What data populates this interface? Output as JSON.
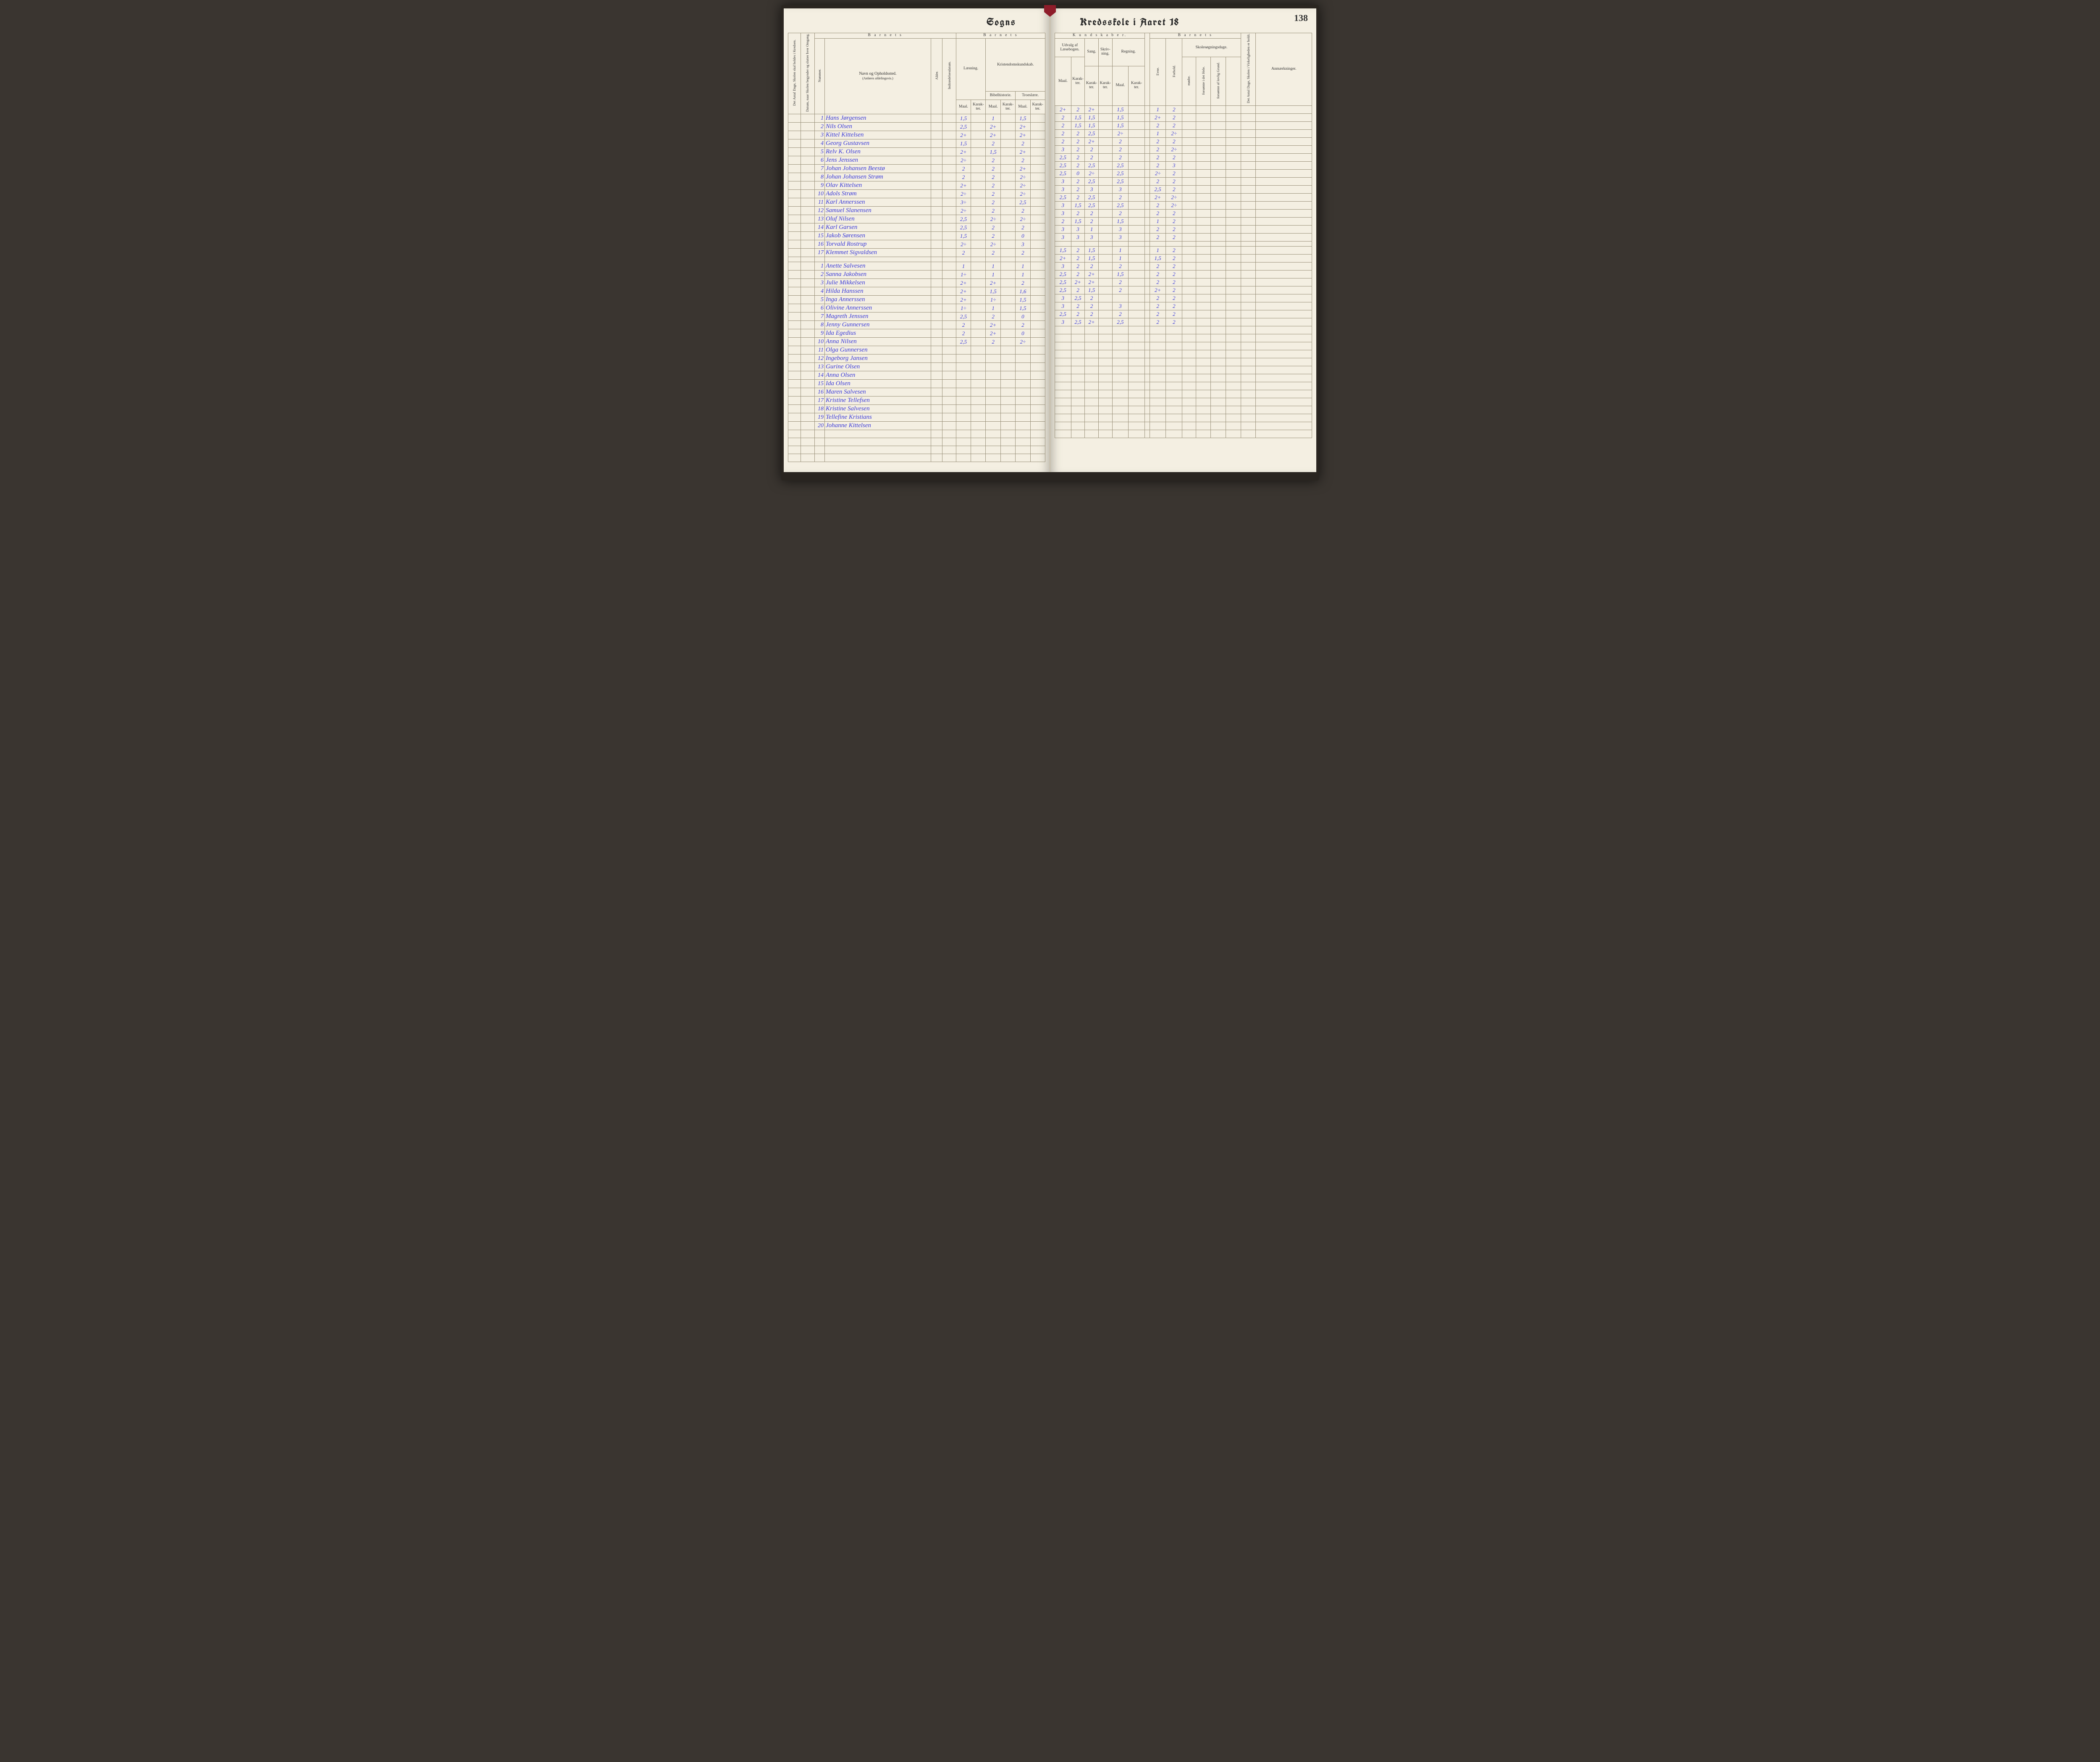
{
  "pageNumber": "138",
  "headings": {
    "left": "Sogns",
    "right": "Kredsskole i Aaret 18"
  },
  "leftHeader": {
    "col1": "Det Antal Dage, Skolen skal holdes i Kredsen.",
    "col2": "Datum, naar Skolen begynder og slutter hver Omgang.",
    "barnetsTop": "B a r n e t s",
    "nummer": "Nummer.",
    "navn": "Navn og Opholdssted.",
    "navnSub": "(Anføres afdelingsvis.)",
    "alder": "Alder.",
    "indtr": "Indtrædelsesdatum.",
    "barnetsRight": "B a r n e t s",
    "laesning": "Læsning.",
    "kristen": "Kristendomskundskab.",
    "bibel": "Bibelhistorie.",
    "troes": "Troeslære.",
    "maal": "Maal.",
    "karak": "Karak-\nter."
  },
  "rightHeader": {
    "kund": "K u n d s k a b e r.",
    "udvalg": "Udvalg af\nLæsebogen.",
    "sang": "Sang.",
    "skriv": "Skriv-\nning.",
    "regning": "Regning.",
    "maal": "Maal.",
    "karak": "Karak-\nter.",
    "barnets": "B a r n e t s",
    "evne": "Evne.",
    "forhold": "Forhold.",
    "skole": "Skolesøgningsdage.",
    "modte": "mødte.",
    "fors1": "forsømte i\ndet Hele.",
    "fors2": "forsømte af\nlovlig Grund.",
    "antal": "Det Antal Dage, Skolen i Virkeligheden er holdt.",
    "anm": "Anmærkninger."
  },
  "rows": [
    {
      "n": "1",
      "name": "Hans Jørgensen",
      "l1": "1,5",
      "l2": "",
      "b1": "1",
      "b2": "",
      "t1": "1,5",
      "u1": "2+",
      "u2": "2",
      "sa": "2+",
      "sk": "",
      "r1": "1,5",
      "r2": "",
      "e": "1",
      "f": "2"
    },
    {
      "n": "2",
      "name": "Nils Olsen",
      "l1": "2,5",
      "l2": "",
      "b1": "2+",
      "b2": "",
      "t1": "2+",
      "u1": "2",
      "u2": "1,5",
      "sa": "1,5",
      "sk": "",
      "r1": "1,5",
      "r2": "",
      "e": "2+",
      "f": "2"
    },
    {
      "n": "3",
      "name": "Kittel Kittelsen",
      "l1": "2+",
      "l2": "",
      "b1": "2+",
      "b2": "",
      "t1": "2+",
      "u1": "2",
      "u2": "1,5",
      "sa": "1,5",
      "sk": "",
      "r1": "1,5",
      "r2": "",
      "e": "2",
      "f": "2"
    },
    {
      "n": "4",
      "name": "Georg Gustavsen",
      "l1": "1,5",
      "l2": "",
      "b1": "2",
      "b2": "",
      "t1": "2",
      "u1": "2",
      "u2": "2",
      "sa": "2,5",
      "sk": "",
      "r1": "2÷",
      "r2": "",
      "e": "1",
      "f": "2÷"
    },
    {
      "n": "5",
      "name": "Relv K. Olsen",
      "l1": "2+",
      "l2": "",
      "b1": "1,5",
      "b2": "",
      "t1": "2+",
      "u1": "2",
      "u2": "2",
      "sa": "2+",
      "sk": "",
      "r1": "2",
      "r2": "",
      "e": "2",
      "f": "2"
    },
    {
      "n": "6",
      "name": "Jens Jenssen",
      "l1": "2÷",
      "l2": "",
      "b1": "2",
      "b2": "",
      "t1": "2",
      "u1": "3",
      "u2": "2",
      "sa": "2",
      "sk": "",
      "r1": "2",
      "r2": "",
      "e": "2",
      "f": "2÷"
    },
    {
      "n": "7",
      "name": "Johan Johansen Beestø",
      "l1": "2",
      "l2": "",
      "b1": "2",
      "b2": "",
      "t1": "2+",
      "u1": "2,5",
      "u2": "2",
      "sa": "2",
      "sk": "",
      "r1": "2",
      "r2": "",
      "e": "2",
      "f": "2"
    },
    {
      "n": "8",
      "name": "Johan Johansen Strøm",
      "l1": "2",
      "l2": "",
      "b1": "2",
      "b2": "",
      "t1": "2÷",
      "u1": "2,5",
      "u2": "2",
      "sa": "2,5",
      "sk": "",
      "r1": "2,5",
      "r2": "",
      "e": "2",
      "f": "3"
    },
    {
      "n": "9",
      "name": "Olav Kittelsen",
      "l1": "2+",
      "l2": "",
      "b1": "2",
      "b2": "",
      "t1": "2÷",
      "u1": "2,5",
      "u2": "0",
      "sa": "2÷",
      "sk": "",
      "r1": "2,5",
      "r2": "",
      "e": "2÷",
      "f": "2"
    },
    {
      "n": "10",
      "name": "Adols Strøm",
      "l1": "2÷",
      "l2": "",
      "b1": "2",
      "b2": "",
      "t1": "2÷",
      "u1": "3",
      "u2": "2",
      "sa": "2,5",
      "sk": "",
      "r1": "2,5",
      "r2": "",
      "e": "2",
      "f": "2"
    },
    {
      "n": "11",
      "name": "Karl Annerssen",
      "l1": "3÷",
      "l2": "",
      "b1": "2",
      "b2": "",
      "t1": "2,5",
      "u1": "3",
      "u2": "2",
      "sa": "3",
      "sk": "",
      "r1": "3",
      "r2": "",
      "e": "2,5",
      "f": "2"
    },
    {
      "n": "12",
      "name": "Samuel Slanensen",
      "l1": "2÷",
      "l2": "",
      "b1": "2",
      "b2": "",
      "t1": "2",
      "u1": "2,5",
      "u2": "2",
      "sa": "2,5",
      "sk": "",
      "r1": "2",
      "r2": "",
      "e": "2+",
      "f": "2÷"
    },
    {
      "n": "13",
      "name": "Oluf Nilsen",
      "l1": "2,5",
      "l2": "",
      "b1": "2÷",
      "b2": "",
      "t1": "2÷",
      "u1": "3",
      "u2": "1,5",
      "sa": "2,5",
      "sk": "",
      "r1": "2,5",
      "r2": "",
      "e": "2",
      "f": "2÷"
    },
    {
      "n": "14",
      "name": "Karl Garsen",
      "l1": "2,5",
      "l2": "",
      "b1": "2",
      "b2": "",
      "t1": "2",
      "u1": "3",
      "u2": "2",
      "sa": "2",
      "sk": "",
      "r1": "2",
      "r2": "",
      "e": "2",
      "f": "2"
    },
    {
      "n": "15",
      "name": "Jakob Sørensen",
      "l1": "1,5",
      "l2": "",
      "b1": "2",
      "b2": "",
      "t1": "0",
      "u1": "2",
      "u2": "1,5",
      "sa": "2",
      "sk": "",
      "r1": "1,5",
      "r2": "",
      "e": "1",
      "f": "2"
    },
    {
      "n": "16",
      "name": "Torvald Rostrup",
      "l1": "2÷",
      "l2": "",
      "b1": "2÷",
      "b2": "",
      "t1": "3",
      "u1": "3",
      "u2": "3",
      "sa": "1",
      "sk": "",
      "r1": "3",
      "r2": "",
      "e": "2",
      "f": "2"
    },
    {
      "n": "17",
      "name": "Klemmet Sigvaldsen",
      "l1": "2",
      "l2": "",
      "b1": "2",
      "b2": "",
      "t1": "2",
      "u1": "3",
      "u2": "3",
      "sa": "3",
      "sk": "",
      "r1": "3",
      "r2": "",
      "e": "2",
      "f": "2"
    },
    {
      "gap": true
    },
    {
      "n": "1",
      "name": "Anette Salvesen",
      "l1": "1",
      "l2": "",
      "b1": "1",
      "b2": "",
      "t1": "1",
      "u1": "1,5",
      "u2": "2",
      "sa": "1,5",
      "sk": "",
      "r1": "1",
      "r2": "",
      "e": "1",
      "f": "2"
    },
    {
      "n": "2",
      "name": "Sanna Jakobsen",
      "l1": "1÷",
      "l2": "",
      "b1": "1",
      "b2": "",
      "t1": "1",
      "u1": "2+",
      "u2": "2",
      "sa": "1,5",
      "sk": "",
      "r1": "1",
      "r2": "",
      "e": "1,5",
      "f": "2"
    },
    {
      "n": "3",
      "name": "Julie Mikkelsen",
      "l1": "2+",
      "l2": "",
      "b1": "2+",
      "b2": "",
      "t1": "2",
      "u1": "3",
      "u2": "2",
      "sa": "2",
      "sk": "",
      "r1": "2",
      "r2": "",
      "e": "2",
      "f": "2"
    },
    {
      "n": "4",
      "name": "Hilda Hanssen",
      "l1": "2+",
      "l2": "",
      "b1": "1,5",
      "b2": "",
      "t1": "1,6",
      "u1": "2,5",
      "u2": "2",
      "sa": "2+",
      "sk": "",
      "r1": "1,5",
      "r2": "",
      "e": "2",
      "f": "2"
    },
    {
      "n": "5",
      "name": "Inga Annerssen",
      "l1": "2+",
      "l2": "",
      "b1": "1÷",
      "b2": "",
      "t1": "1,5",
      "u1": "2,5",
      "u2": "2+",
      "sa": "2+",
      "sk": "",
      "r1": "2",
      "r2": "",
      "e": "2",
      "f": "2"
    },
    {
      "n": "6",
      "name": "Olivine Annerssen",
      "l1": "1÷",
      "l2": "",
      "b1": "1",
      "b2": "",
      "t1": "1,5",
      "u1": "2,5",
      "u2": "2",
      "sa": "1,5",
      "sk": "",
      "r1": "2",
      "r2": "",
      "e": "2+",
      "f": "2"
    },
    {
      "n": "7",
      "name": "Magreth Jenssen",
      "l1": "2,5",
      "l2": "",
      "b1": "2",
      "b2": "",
      "t1": "0",
      "u1": "3",
      "u2": "2,5",
      "sa": "2",
      "sk": "",
      "r1": "",
      "r2": "",
      "e": "2",
      "f": "2"
    },
    {
      "n": "8",
      "name": "Jenny Gunnersen",
      "l1": "2",
      "l2": "",
      "b1": "2+",
      "b2": "",
      "t1": "2",
      "u1": "3",
      "u2": "2",
      "sa": "2",
      "sk": "",
      "r1": "3",
      "r2": "",
      "e": "2",
      "f": "2"
    },
    {
      "n": "9",
      "name": "Ida Egedius",
      "l1": "2",
      "l2": "",
      "b1": "2+",
      "b2": "",
      "t1": "0",
      "u1": "2,5",
      "u2": "2",
      "sa": "2",
      "sk": "",
      "r1": "2",
      "r2": "",
      "e": "2",
      "f": "2"
    },
    {
      "n": "10",
      "name": "Anna Nilsen",
      "l1": "2,5",
      "l2": "",
      "b1": "2",
      "b2": "",
      "t1": "2÷",
      "u1": "3",
      "u2": "2,5",
      "sa": "2+",
      "sk": "",
      "r1": "2,5",
      "r2": "",
      "e": "2",
      "f": "2"
    },
    {
      "n": "11",
      "name": "Olga Gunnersen"
    },
    {
      "n": "12",
      "name": "Ingeborg Jansen"
    },
    {
      "n": "13",
      "name": "Gurine Olsen"
    },
    {
      "n": "14",
      "name": "Anna Olsen"
    },
    {
      "n": "15",
      "name": "Ida Olsen"
    },
    {
      "n": "16",
      "name": "Maren Salvesen"
    },
    {
      "n": "17",
      "name": "Kristine Tellefsen"
    },
    {
      "n": "18",
      "name": "Kristine Salvesen"
    },
    {
      "n": "19",
      "name": "Tellefine Kristians"
    },
    {
      "n": "20",
      "name": "Johanne Kittelsen"
    }
  ]
}
